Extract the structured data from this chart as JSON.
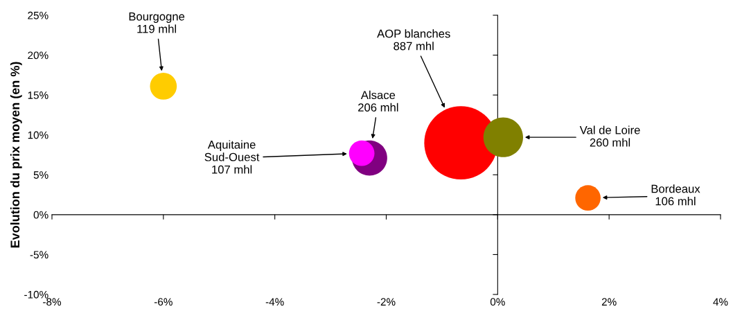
{
  "chart_data": {
    "type": "bubble",
    "ylabel": "Evolution du prix moyen (en %)",
    "x": [
      -6.0,
      -2.3,
      -2.44,
      -0.66,
      0.1,
      1.62
    ],
    "values": [
      16.1,
      7.1,
      7.7,
      9.0,
      9.7,
      2.1
    ],
    "sizes": [
      0.134,
      0.232,
      0.121,
      1,
      0.293,
      0.12
    ],
    "colors": [
      "#ffcc00",
      "#800080",
      "#ff00ff",
      "#ff0000",
      "#808000",
      "#ff6600"
    ],
    "xlim": [
      -8,
      4
    ],
    "xticks": [
      {
        "value": -8,
        "label": "-8%"
      },
      {
        "value": -6,
        "label": "-6%"
      },
      {
        "value": -4,
        "label": "-4%"
      },
      {
        "value": -2,
        "label": "-2%"
      },
      {
        "value": 0,
        "label": "0%"
      },
      {
        "value": 2,
        "label": "2%"
      },
      {
        "value": 4,
        "label": "4%"
      }
    ],
    "ylim": [
      -10,
      25
    ],
    "yticks": [
      {
        "value": -10,
        "label": "-10%"
      },
      {
        "value": -5,
        "label": "-5%"
      },
      {
        "value": 0,
        "label": "0%"
      },
      {
        "value": 5,
        "label": "5%"
      },
      {
        "value": 10,
        "label": "10%"
      },
      {
        "value": 15,
        "label": "15%"
      },
      {
        "value": 20,
        "label": "20%"
      },
      {
        "value": 25,
        "label": "25%"
      }
    ],
    "legend": false,
    "annotations": [
      "Bourgogne\n119 mhl",
      "Alsace\n206 mhl",
      "Aquitaine\nSud-Ouest\n107 mhl",
      "AOP blanches\n887 mhl",
      "Val de Loire\n260 mhl",
      "Bordeaux\n106 mhl"
    ]
  }
}
